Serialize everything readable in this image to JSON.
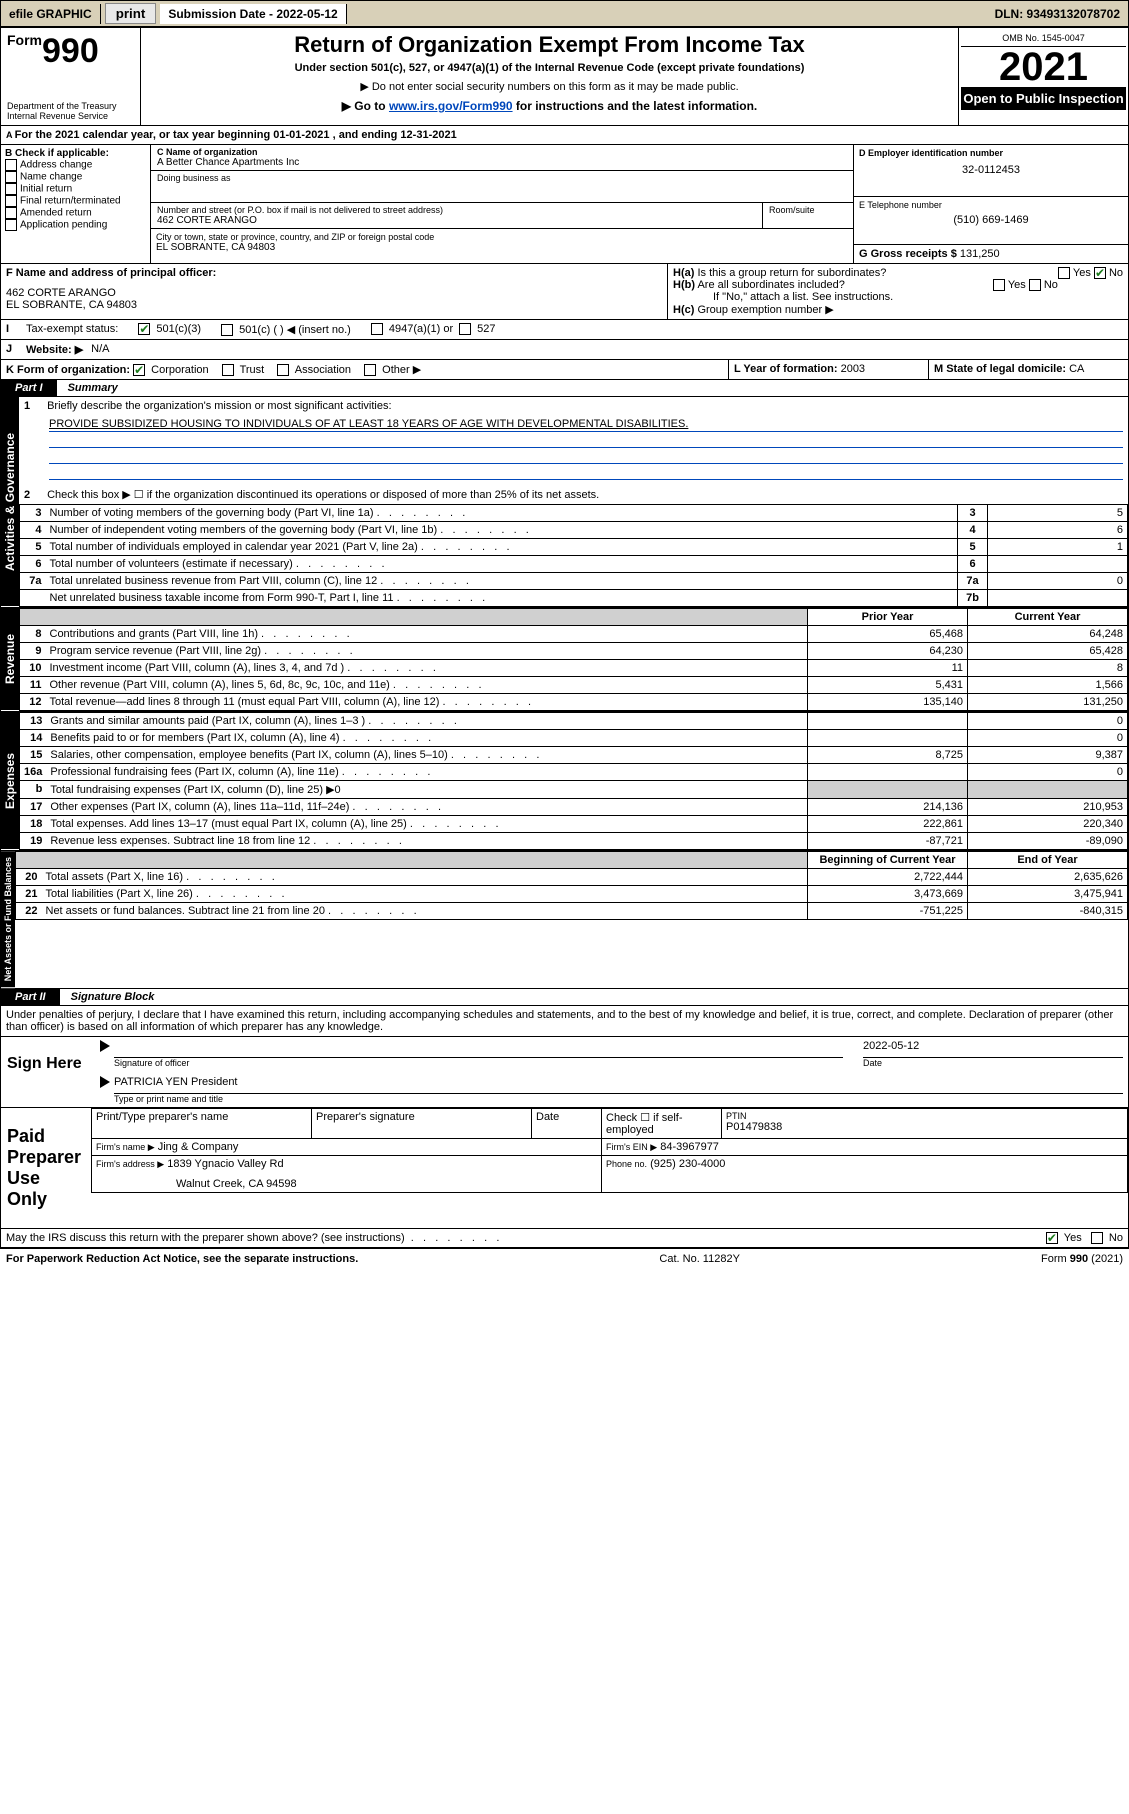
{
  "topbar": {
    "efile": "efile GRAPHIC",
    "print": "print",
    "sub_label": "Submission Date - 2022-05-12",
    "dln": "DLN: 93493132078702"
  },
  "header": {
    "form_small": "Form",
    "form_num": "990",
    "dept": "Department of the Treasury",
    "irs": "Internal Revenue Service",
    "title": "Return of Organization Exempt From Income Tax",
    "sub1": "Under section 501(c), 527, or 4947(a)(1) of the Internal Revenue Code (except private foundations)",
    "sub2": "▶ Do not enter social security numbers on this form as it may be made public.",
    "sub3_pre": "▶ Go to ",
    "sub3_link": "www.irs.gov/Form990",
    "sub3_post": " for instructions and the latest information.",
    "omb": "OMB No. 1545-0047",
    "year": "2021",
    "open": "Open to Public Inspection"
  },
  "A": {
    "line": "For the 2021 calendar year, or tax year beginning 01-01-2021   , and ending 12-31-2021"
  },
  "B": {
    "label": "B Check if applicable:",
    "opts": [
      "Address change",
      "Name change",
      "Initial return",
      "Final return/terminated",
      "Amended return",
      "Application pending"
    ]
  },
  "C": {
    "name_label": "C Name of organization",
    "name": "A Better Chance Apartments Inc",
    "dba_label": "Doing business as",
    "addr_label": "Number and street (or P.O. box if mail is not delivered to street address)",
    "room_label": "Room/suite",
    "addr": "462 CORTE ARANGO",
    "city_label": "City or town, state or province, country, and ZIP or foreign postal code",
    "city": "EL SOBRANTE, CA  94803"
  },
  "D": {
    "label": "D Employer identification number",
    "val": "32-0112453"
  },
  "E": {
    "label": "E Telephone number",
    "val": "(510) 669-1469"
  },
  "G": {
    "label": "G Gross receipts $",
    "val": "131,250"
  },
  "F": {
    "label": "F  Name and address of principal officer:",
    "addr1": "462 CORTE ARANGO",
    "addr2": "EL SOBRANTE, CA  94803"
  },
  "H": {
    "a": "Is this a group return for subordinates?",
    "b": "Are all subordinates included?",
    "note": "If \"No,\" attach a list. See instructions.",
    "c": "Group exemption number ▶"
  },
  "I": {
    "label": "Tax-exempt status:",
    "c3": "501(c)(3)",
    "c": "501(c) (  ) ◀ (insert no.)",
    "a1": "4947(a)(1) or",
    "s527": "527"
  },
  "J": {
    "label": "Website: ▶",
    "val": "N/A"
  },
  "K": {
    "label": "K Form of organization:",
    "corp": "Corporation",
    "trust": "Trust",
    "assoc": "Association",
    "other": "Other ▶"
  },
  "L": {
    "label": "L Year of formation:",
    "val": "2003"
  },
  "M": {
    "label": "M State of legal domicile:",
    "val": "CA"
  },
  "part1": {
    "hdr": "Part I",
    "title": "Summary"
  },
  "mission": {
    "q": "Briefly describe the organization's mission or most significant activities:",
    "text": "PROVIDE SUBSIDIZED HOUSING TO INDIVIDUALS OF AT LEAST 18 YEARS OF AGE WITH DEVELOPMENTAL DISABILITIES."
  },
  "line2": "Check this box ▶ ☐  if the organization discontinued its operations or disposed of more than 25% of its net assets.",
  "gov_lines": [
    {
      "n": "3",
      "d": "Number of voting members of the governing body (Part VI, line 1a)",
      "box": "3",
      "v": "5"
    },
    {
      "n": "4",
      "d": "Number of independent voting members of the governing body (Part VI, line 1b)",
      "box": "4",
      "v": "6"
    },
    {
      "n": "5",
      "d": "Total number of individuals employed in calendar year 2021 (Part V, line 2a)",
      "box": "5",
      "v": "1"
    },
    {
      "n": "6",
      "d": "Total number of volunteers (estimate if necessary)",
      "box": "6",
      "v": ""
    },
    {
      "n": "7a",
      "d": "Total unrelated business revenue from Part VIII, column (C), line 12",
      "box": "7a",
      "v": "0"
    },
    {
      "n": "",
      "d": "Net unrelated business taxable income from Form 990-T, Part I, line 11",
      "box": "7b",
      "v": ""
    }
  ],
  "col_hdr": {
    "prior": "Prior Year",
    "current": "Current Year"
  },
  "rev_lines": [
    {
      "n": "8",
      "d": "Contributions and grants (Part VIII, line 1h)",
      "p": "65,468",
      "c": "64,248"
    },
    {
      "n": "9",
      "d": "Program service revenue (Part VIII, line 2g)",
      "p": "64,230",
      "c": "65,428"
    },
    {
      "n": "10",
      "d": "Investment income (Part VIII, column (A), lines 3, 4, and 7d )",
      "p": "11",
      "c": "8"
    },
    {
      "n": "11",
      "d": "Other revenue (Part VIII, column (A), lines 5, 6d, 8c, 9c, 10c, and 11e)",
      "p": "5,431",
      "c": "1,566"
    },
    {
      "n": "12",
      "d": "Total revenue—add lines 8 through 11 (must equal Part VIII, column (A), line 12)",
      "p": "135,140",
      "c": "131,250"
    }
  ],
  "exp_lines": [
    {
      "n": "13",
      "d": "Grants and similar amounts paid (Part IX, column (A), lines 1–3 )",
      "p": "",
      "c": "0"
    },
    {
      "n": "14",
      "d": "Benefits paid to or for members (Part IX, column (A), line 4)",
      "p": "",
      "c": "0"
    },
    {
      "n": "15",
      "d": "Salaries, other compensation, employee benefits (Part IX, column (A), lines 5–10)",
      "p": "8,725",
      "c": "9,387"
    },
    {
      "n": "16a",
      "d": "Professional fundraising fees (Part IX, column (A), line 11e)",
      "p": "",
      "c": "0"
    },
    {
      "n": "b",
      "d": "Total fundraising expenses (Part IX, column (D), line 25) ▶0",
      "shade": true
    },
    {
      "n": "17",
      "d": "Other expenses (Part IX, column (A), lines 11a–11d, 11f–24e)",
      "p": "214,136",
      "c": "210,953"
    },
    {
      "n": "18",
      "d": "Total expenses. Add lines 13–17 (must equal Part IX, column (A), line 25)",
      "p": "222,861",
      "c": "220,340"
    },
    {
      "n": "19",
      "d": "Revenue less expenses. Subtract line 18 from line 12",
      "p": "-87,721",
      "c": "-89,090"
    }
  ],
  "na_hdr": {
    "begin": "Beginning of Current Year",
    "end": "End of Year"
  },
  "na_lines": [
    {
      "n": "20",
      "d": "Total assets (Part X, line 16)",
      "p": "2,722,444",
      "c": "2,635,626"
    },
    {
      "n": "21",
      "d": "Total liabilities (Part X, line 26)",
      "p": "3,473,669",
      "c": "3,475,941"
    },
    {
      "n": "22",
      "d": "Net assets or fund balances. Subtract line 21 from line 20",
      "p": "-751,225",
      "c": "-840,315"
    }
  ],
  "part2": {
    "hdr": "Part II",
    "title": "Signature Block"
  },
  "penal": "Under penalties of perjury, I declare that I have examined this return, including accompanying schedules and statements, and to the best of my knowledge and belief, it is true, correct, and complete. Declaration of preparer (other than officer) is based on all information of which preparer has any knowledge.",
  "sign": {
    "here": "Sign Here",
    "sig_officer": "Signature of officer",
    "date": "Date",
    "date_val": "2022-05-12",
    "name": "PATRICIA YEN  President",
    "name_label": "Type or print name and title"
  },
  "paid": {
    "hdr": "Paid Preparer Use Only",
    "col1": "Print/Type preparer's name",
    "col2": "Preparer's signature",
    "col3": "Date",
    "check": "Check ☐ if self-employed",
    "ptin_l": "PTIN",
    "ptin": "P01479838",
    "firm_name_l": "Firm's name   ▶",
    "firm_name": "Jing & Company",
    "firm_ein_l": "Firm's EIN ▶",
    "firm_ein": "84-3967977",
    "firm_addr_l": "Firm's address ▶",
    "firm_addr1": "1839 Ygnacio Valley Rd",
    "firm_addr2": "Walnut Creek, CA  94598",
    "phone_l": "Phone no.",
    "phone": "(925) 230-4000"
  },
  "may_irs": "May the IRS discuss this return with the preparer shown above? (see instructions)",
  "footer": {
    "left": "For Paperwork Reduction Act Notice, see the separate instructions.",
    "mid": "Cat. No. 11282Y",
    "right": "Form 990 (2021)"
  },
  "tabs": {
    "gov": "Activities & Governance",
    "rev": "Revenue",
    "exp": "Expenses",
    "na": "Net Assets or Fund Balances"
  }
}
